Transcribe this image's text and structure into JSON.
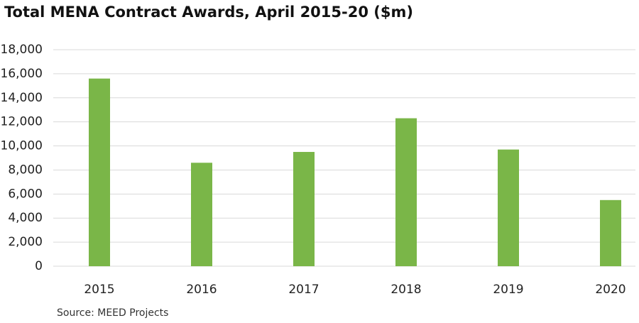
{
  "chart_data": {
    "type": "bar",
    "title": "Total MENA Contract Awards, April 2015-20 ($m)",
    "source": "Source: MEED Projects",
    "categories": [
      "2015",
      "2016",
      "2017",
      "2018",
      "2019",
      "2020"
    ],
    "values": [
      15600,
      8600,
      9500,
      12300,
      9700,
      5500
    ],
    "color": "#7ab648",
    "ylim": [
      0,
      18000
    ],
    "yticks": [
      0,
      {
        "value": 2000,
        "label": "2,000"
      },
      {
        "value": 4000,
        "label": "4,000"
      },
      {
        "value": 6000,
        "label": "6,000"
      },
      {
        "value": 8000,
        "label": "8,000"
      },
      {
        "value": 10000,
        "label": "10,000"
      },
      {
        "value": 12000,
        "label": "12,000"
      },
      {
        "value": 14000,
        "label": "14,000"
      },
      {
        "value": 16000,
        "label": "16,000"
      },
      {
        "value": 18000,
        "label": "18,000"
      }
    ],
    "grid": true
  }
}
